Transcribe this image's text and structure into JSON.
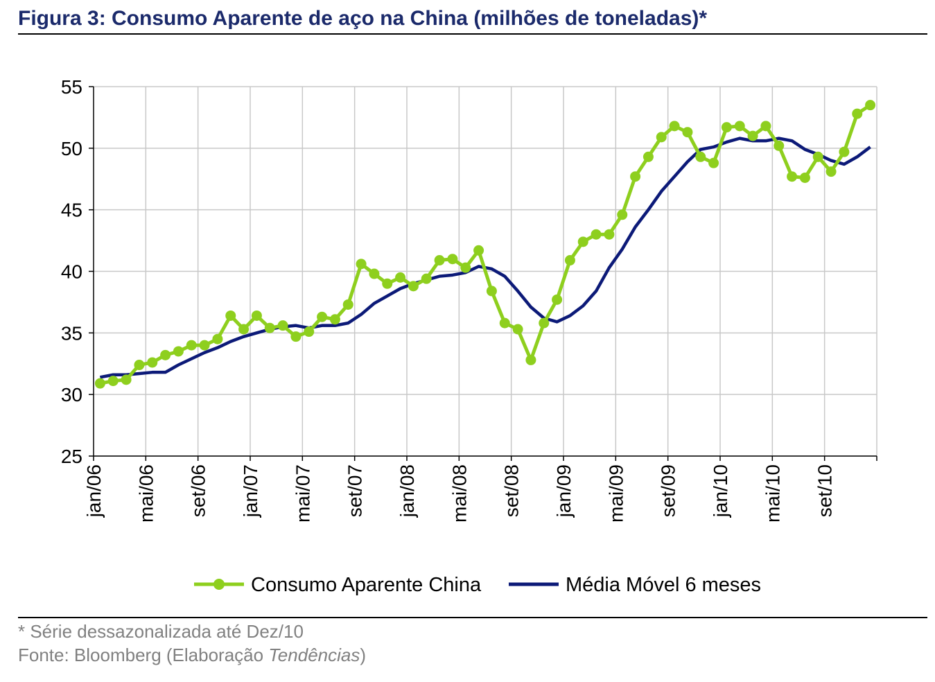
{
  "title": "Figura 3: Consumo Aparente de aço na China (milhões de toneladas)*",
  "footnote": "* Série dessazonalizada até Dez/10",
  "source_prefix": "Fonte: Bloomberg (Elaboração ",
  "source_italic": "Tendências",
  "source_suffix": ")",
  "colors": {
    "consumo": "#8ecf1e",
    "media": "#0c1a78",
    "grid": "#c8c8c8",
    "title": "#1b2a6b"
  },
  "chart_data": {
    "type": "line",
    "title": "Figura 3: Consumo Aparente de aço na China (milhões de toneladas)*",
    "xlabel": "",
    "ylabel": "",
    "ylim": [
      25,
      55
    ],
    "yticks": [
      "55",
      "50",
      "45",
      "40",
      "35",
      "30",
      "25"
    ],
    "grid": true,
    "legend_position": "bottom",
    "x_tick_labels": [
      "jan/06",
      "mai/06",
      "set/06",
      "jan/07",
      "mai/07",
      "set/07",
      "jan/08",
      "mai/08",
      "set/08",
      "jan/09",
      "mai/09",
      "set/09",
      "jan/10",
      "mai/10",
      "set/10"
    ],
    "x": [
      "jan/06",
      "fev/06",
      "mar/06",
      "abr/06",
      "mai/06",
      "jun/06",
      "jul/06",
      "ago/06",
      "set/06",
      "out/06",
      "nov/06",
      "dez/06",
      "jan/07",
      "fev/07",
      "mar/07",
      "abr/07",
      "mai/07",
      "jun/07",
      "jul/07",
      "ago/07",
      "set/07",
      "out/07",
      "nov/07",
      "dez/07",
      "jan/08",
      "fev/08",
      "mar/08",
      "abr/08",
      "mai/08",
      "jun/08",
      "jul/08",
      "ago/08",
      "set/08",
      "out/08",
      "nov/08",
      "dez/08",
      "jan/09",
      "fev/09",
      "mar/09",
      "abr/09",
      "mai/09",
      "jun/09",
      "jul/09",
      "ago/09",
      "set/09",
      "out/09",
      "nov/09",
      "dez/09",
      "jan/10",
      "fev/10",
      "mar/10",
      "abr/10",
      "mai/10",
      "jun/10",
      "jul/10",
      "ago/10",
      "set/10",
      "out/10",
      "nov/10",
      "dez/10"
    ],
    "series": [
      {
        "name": "Consumo Aparente China",
        "marker": "circle",
        "values": [
          30.9,
          31.1,
          31.2,
          32.4,
          32.6,
          33.2,
          33.5,
          34.0,
          34.0,
          34.5,
          36.4,
          35.3,
          36.4,
          35.4,
          35.6,
          34.7,
          35.1,
          36.3,
          36.1,
          37.3,
          40.6,
          39.8,
          39.0,
          39.5,
          38.8,
          39.4,
          40.9,
          41.0,
          40.3,
          41.7,
          38.4,
          35.8,
          35.3,
          32.8,
          35.8,
          37.7,
          40.9,
          42.4,
          43.0,
          43.0,
          44.6,
          47.7,
          49.3,
          50.9,
          51.8,
          51.3,
          49.3,
          48.8,
          51.7,
          51.8,
          51.0,
          51.8,
          50.2,
          47.7,
          47.6,
          49.3,
          48.1,
          49.7,
          52.8,
          53.5
        ]
      },
      {
        "name": "Média Móvel 6 meses",
        "marker": "none",
        "values": [
          31.4,
          31.6,
          31.6,
          31.7,
          31.8,
          31.8,
          32.4,
          32.9,
          33.4,
          33.8,
          34.3,
          34.7,
          35.0,
          35.3,
          35.5,
          35.6,
          35.4,
          35.6,
          35.6,
          35.8,
          36.5,
          37.4,
          38.0,
          38.6,
          39.0,
          39.3,
          39.6,
          39.7,
          39.9,
          40.4,
          40.2,
          39.6,
          38.4,
          37.1,
          36.2,
          35.9,
          36.4,
          37.2,
          38.4,
          40.3,
          41.8,
          43.6,
          45.0,
          46.5,
          47.7,
          48.9,
          49.9,
          50.1,
          50.5,
          50.8,
          50.6,
          50.6,
          50.8,
          50.6,
          49.9,
          49.5,
          49.0,
          48.7,
          49.3,
          50.1
        ]
      }
    ]
  }
}
